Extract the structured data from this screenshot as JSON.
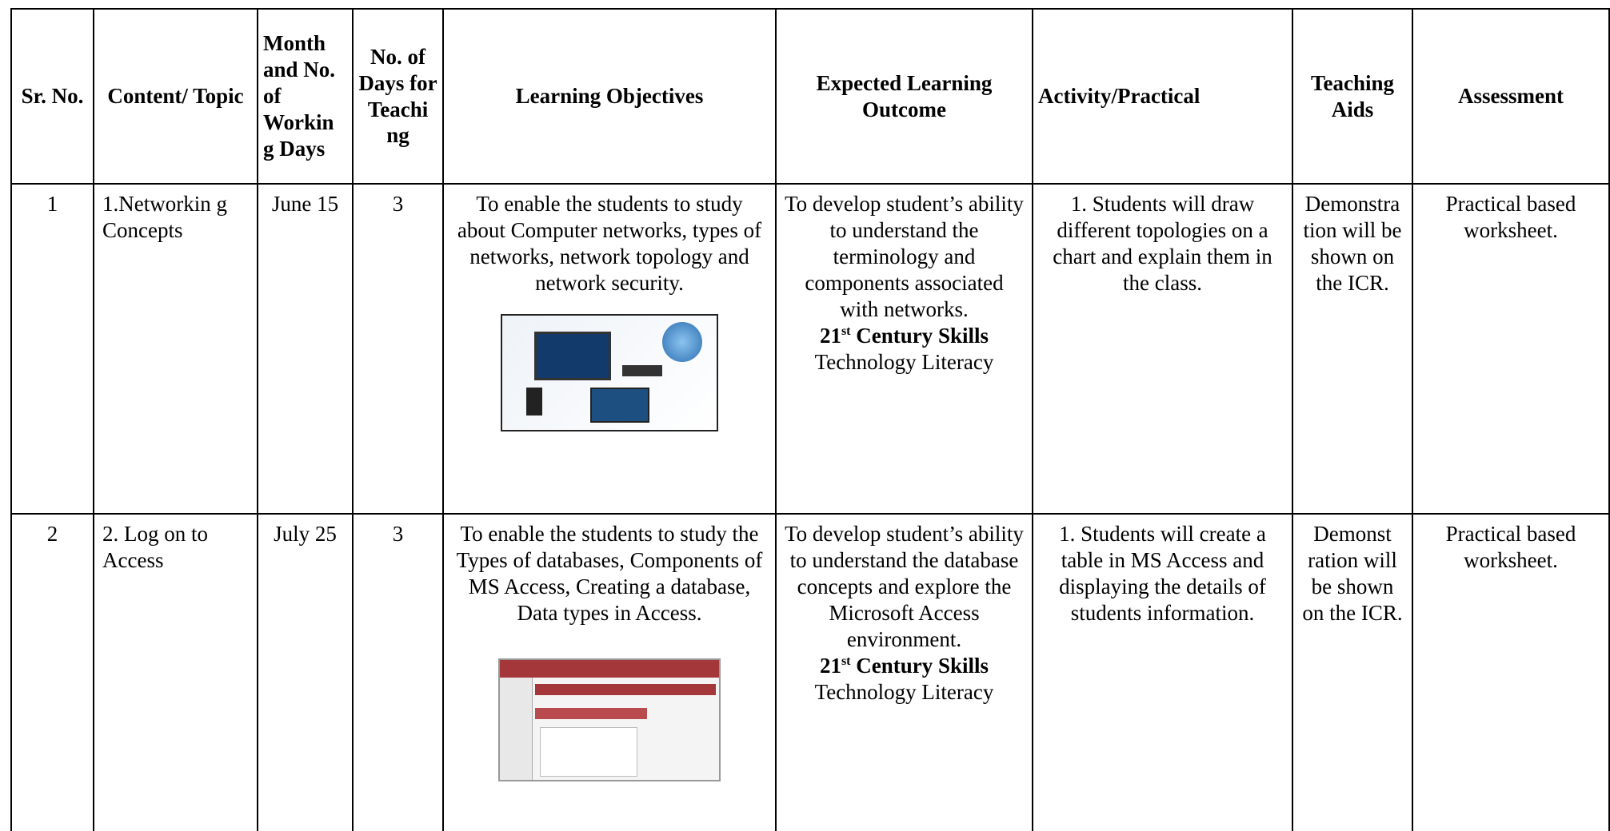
{
  "header": [
    "Sr. No.",
    "Content/ Topic",
    "Month and No. of Workin g Days",
    "No. of Days for Teachi ng",
    "Learning Objectives",
    "Expected Learning Outcome",
    "Activity/Practical",
    "Teaching Aids",
    "Assessment"
  ],
  "rows": [
    {
      "sr": "1",
      "topic": "1.Networkin g Concepts",
      "month": "June 15",
      "days": "3",
      "objectives": "To enable the students to study about Computer networks, types of networks, network topology and network security.",
      "outcome": "To develop student’s ability to understand the terminology and components associated with networks.",
      "skills_number": "21",
      "skills_suffix": "st",
      "skills_title": "Century Skills",
      "skills": "Technology Literacy",
      "activity": "1. Students will draw different topologies on a chart and explain them in the class.",
      "aids": "Demonstra tion will be shown on the ICR.",
      "assessment": "Practical based worksheet."
    },
    {
      "sr": "2",
      "topic": "2. Log on to Access",
      "month": "July 25",
      "days": "3",
      "objectives": "To enable the students to study the Types of databases, Components of MS Access, Creating a database, Data types in Access.",
      "outcome": "To develop student’s ability to understand the database concepts and explore the Microsoft Access environment.",
      "skills_number": "21",
      "skills_suffix": "st",
      "skills_title": "Century Skills",
      "skills": "Technology Literacy",
      "activity": "1. Students will create a table in MS Access and displaying the details of students information.",
      "aids": "Demonst ration will be shown on the ICR.",
      "assessment": "Practical based worksheet."
    }
  ]
}
